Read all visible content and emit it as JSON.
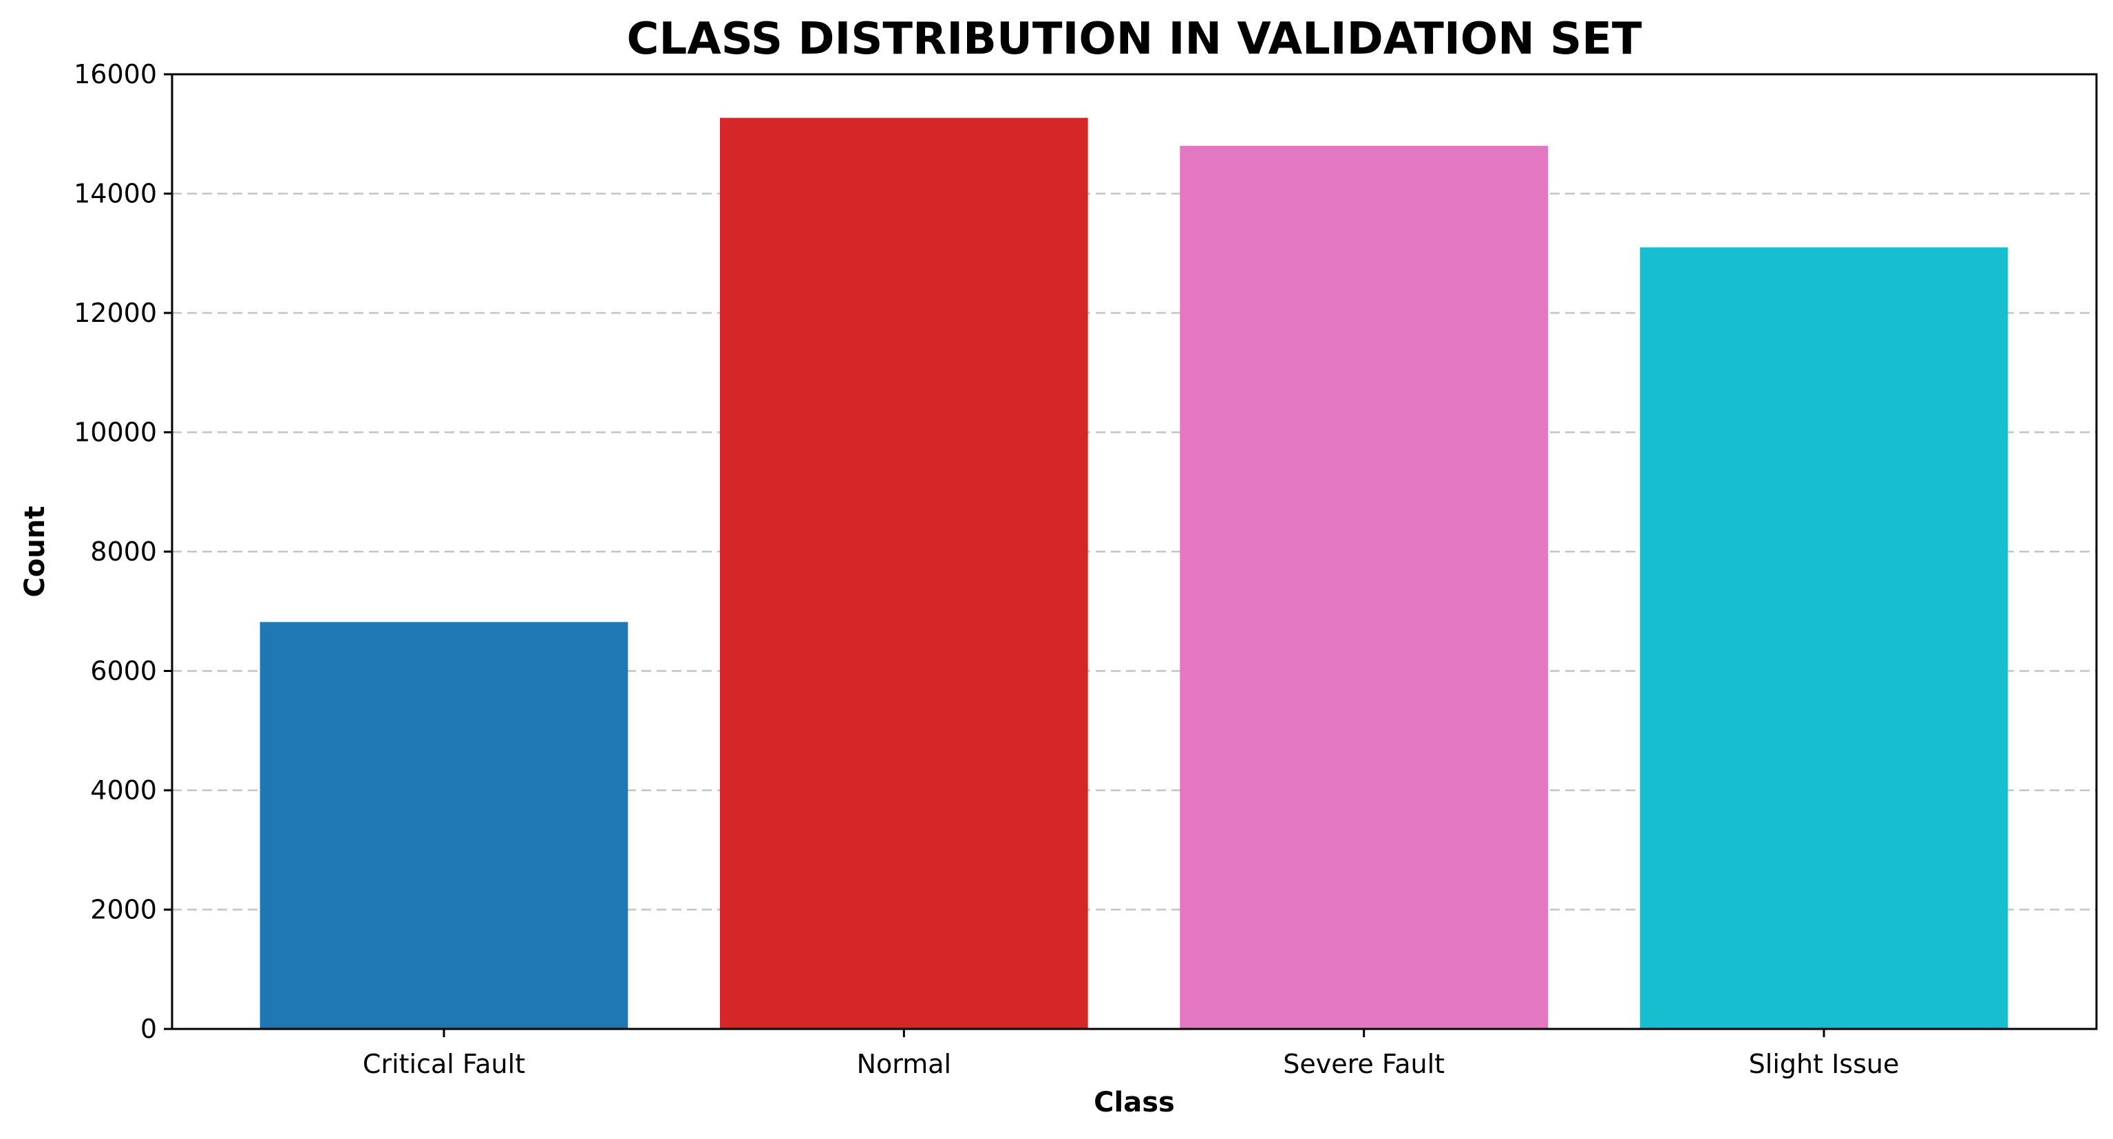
{
  "chart_data": {
    "type": "bar",
    "title": "CLASS DISTRIBUTION IN VALIDATION SET",
    "xlabel": "Class",
    "ylabel": "Count",
    "categories": [
      "Critical Fault",
      "Normal",
      "Severe Fault",
      "Slight Issue"
    ],
    "values": [
      6820,
      15270,
      14800,
      13100
    ],
    "colors": [
      "#1f77b4",
      "#d62728",
      "#e377c2",
      "#17becf"
    ],
    "ylim": [
      0,
      16000
    ],
    "yticks": [
      0,
      2000,
      4000,
      6000,
      8000,
      10000,
      12000,
      14000,
      16000
    ],
    "grid": "y-dashed",
    "legend": "none"
  }
}
